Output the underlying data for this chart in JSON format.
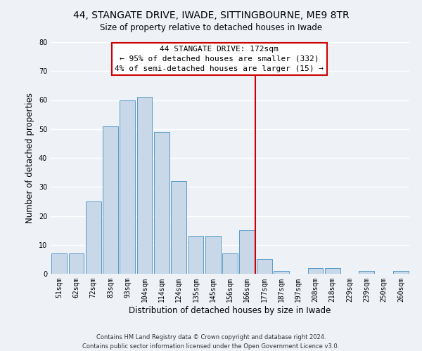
{
  "title": "44, STANGATE DRIVE, IWADE, SITTINGBOURNE, ME9 8TR",
  "subtitle": "Size of property relative to detached houses in Iwade",
  "xlabel": "Distribution of detached houses by size in Iwade",
  "ylabel": "Number of detached properties",
  "bar_labels": [
    "51sqm",
    "62sqm",
    "72sqm",
    "83sqm",
    "93sqm",
    "104sqm",
    "114sqm",
    "124sqm",
    "135sqm",
    "145sqm",
    "156sqm",
    "166sqm",
    "177sqm",
    "187sqm",
    "197sqm",
    "208sqm",
    "218sqm",
    "229sqm",
    "239sqm",
    "250sqm",
    "260sqm"
  ],
  "bar_values": [
    7,
    7,
    25,
    51,
    60,
    61,
    49,
    32,
    13,
    13,
    7,
    15,
    5,
    1,
    0,
    2,
    2,
    0,
    1,
    0,
    1
  ],
  "bar_color": "#c8d8e8",
  "bar_edge_color": "#5a9ac8",
  "vline_color": "#cc0000",
  "annotation_title": "44 STANGATE DRIVE: 172sqm",
  "annotation_line1": "← 95% of detached houses are smaller (332)",
  "annotation_line2": "4% of semi-detached houses are larger (15) →",
  "ylim": [
    0,
    80
  ],
  "yticks": [
    0,
    10,
    20,
    30,
    40,
    50,
    60,
    70,
    80
  ],
  "footer1": "Contains HM Land Registry data © Crown copyright and database right 2024.",
  "footer2": "Contains public sector information licensed under the Open Government Licence v3.0.",
  "bg_color": "#eef2f7",
  "grid_color": "#ffffff",
  "title_fontsize": 10,
  "subtitle_fontsize": 8.5,
  "axis_label_fontsize": 8.5,
  "tick_fontsize": 7,
  "footer_fontsize": 6,
  "annot_fontsize": 8
}
